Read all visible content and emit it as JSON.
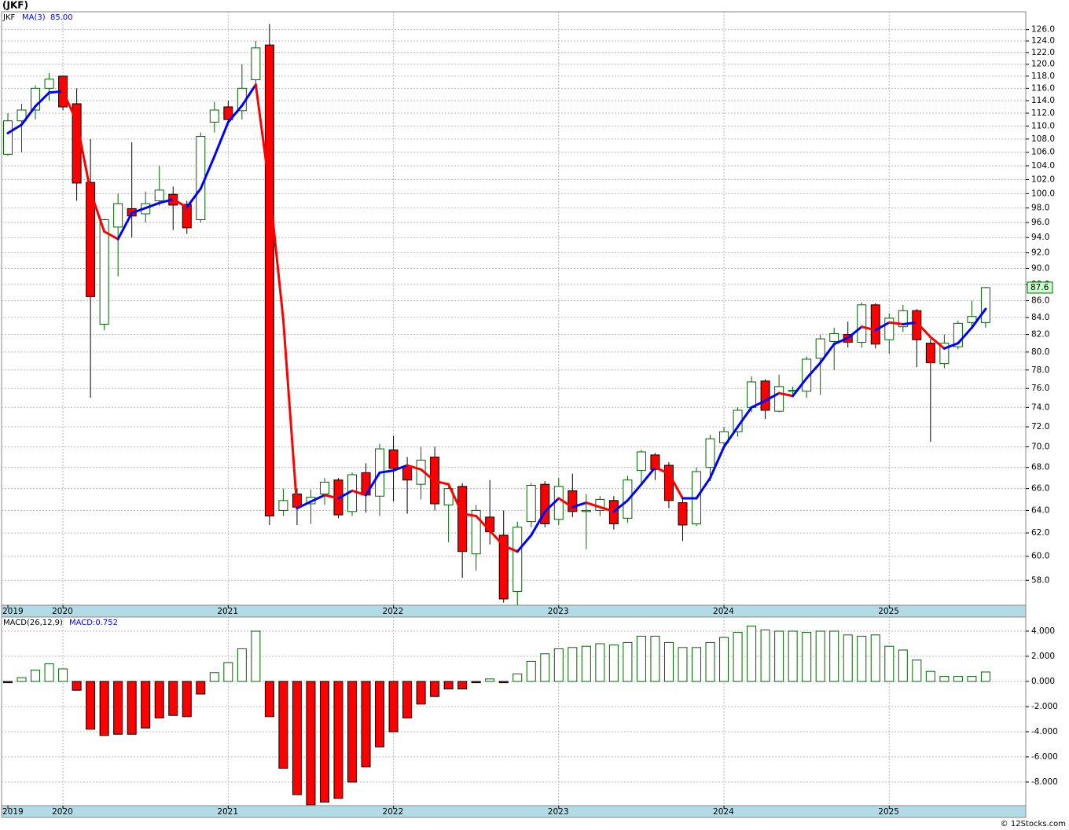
{
  "chart_data": [
    {
      "type": "candlestick",
      "title": "(JKF)",
      "symbol": "JKF",
      "categories": [
        "2019",
        null,
        null,
        null,
        "2020",
        null,
        null,
        null,
        null,
        null,
        null,
        null,
        null,
        null,
        null,
        null,
        "2021",
        null,
        null,
        null,
        null,
        null,
        null,
        null,
        null,
        null,
        null,
        null,
        "2022",
        null,
        null,
        null,
        null,
        null,
        null,
        null,
        null,
        null,
        null,
        null,
        "2023",
        null,
        null,
        null,
        null,
        null,
        null,
        null,
        null,
        null,
        null,
        null,
        "2024",
        null,
        null,
        null,
        null,
        null,
        null,
        null,
        null,
        null,
        null,
        null,
        "2025",
        null,
        null,
        null,
        null,
        null,
        null,
        null
      ],
      "open": [
        105.7,
        110.8,
        112.5,
        116,
        118,
        113.5,
        101.6,
        83.2,
        95.4,
        97.9,
        97.2,
        99,
        99.9,
        98.5,
        96.4,
        110.6,
        113,
        112.4,
        117.4,
        123.3,
        64,
        65.5,
        64.6,
        65.5,
        66.8,
        63.9,
        67.5,
        65.3,
        69.7,
        68.1,
        66.4,
        69,
        64.5,
        66.2,
        60.2,
        63.4,
        61.8,
        57.1,
        63,
        66.4,
        63.2,
        65.8,
        63.9,
        64,
        64.9,
        63.3,
        67.7,
        69.2,
        68.2,
        64.7,
        62.8,
        68,
        70.4,
        71.5,
        74,
        76.8,
        73.6,
        75.7,
        75.7,
        79.3,
        81.2,
        82,
        81.1,
        85.5,
        81.4,
        82.9,
        84.8,
        81,
        78.7,
        80.6,
        83.4,
        83.4
      ],
      "high": [
        112,
        113.5,
        116.5,
        118.5,
        118,
        116,
        108,
        96.5,
        100,
        107.5,
        100.3,
        104,
        101,
        99,
        109,
        113.8,
        114,
        120,
        124,
        127,
        66,
        66,
        65.9,
        67,
        67,
        67.5,
        68.4,
        70.3,
        71.1,
        69,
        70,
        70,
        66.5,
        66.5,
        64.5,
        66.8,
        64,
        63,
        66.5,
        66.7,
        67,
        67.4,
        65.5,
        65.3,
        65.3,
        67.2,
        69.7,
        69.4,
        68.5,
        65,
        68,
        71.2,
        72,
        74,
        77.3,
        77,
        77.5,
        76.2,
        79.5,
        82,
        82.8,
        83.5,
        85.8,
        85.7,
        84.5,
        85.5,
        85,
        81.5,
        82,
        83.6,
        86,
        87.7
      ],
      "low": [
        105.5,
        106,
        111,
        114,
        112.5,
        99,
        75,
        82.5,
        89,
        94,
        96,
        98.3,
        95,
        94.5,
        96,
        109,
        110.6,
        111,
        116,
        62.7,
        63.5,
        62.7,
        62.8,
        64.5,
        63.3,
        63.5,
        63.8,
        63.5,
        64.8,
        63.7,
        65,
        64,
        61.2,
        58.2,
        58.8,
        61,
        56.2,
        56,
        62.5,
        62.5,
        62.7,
        63.4,
        60.6,
        63.5,
        62.3,
        62.9,
        66.5,
        66.8,
        64.2,
        61.3,
        62.6,
        66.7,
        69.9,
        71,
        73.5,
        72.8,
        73.5,
        75.3,
        75,
        75.3,
        78,
        80.5,
        80.5,
        80.4,
        79.8,
        82.3,
        78.3,
        70.5,
        78.2,
        80.3,
        82.7,
        82.8
      ],
      "close": [
        110.8,
        112.5,
        116,
        117.5,
        113,
        101.5,
        86.5,
        96.4,
        98.6,
        96.9,
        98.6,
        100.5,
        98.4,
        95.3,
        108.4,
        112.5,
        111,
        116,
        122.8,
        63.5,
        64.9,
        64.3,
        65.2,
        66.6,
        63.6,
        67.3,
        65.4,
        69.8,
        67.9,
        66.8,
        68.7,
        64.6,
        66,
        60.4,
        64,
        62.1,
        56.5,
        62.5,
        66.3,
        62.8,
        66.2,
        63.9,
        64,
        65,
        62.8,
        66.8,
        69.5,
        67.8,
        64.9,
        62.7,
        67.6,
        70.8,
        71.5,
        73.7,
        76.7,
        73.7,
        76.2,
        75.8,
        79.2,
        81.5,
        82.1,
        81.1,
        85.5,
        80.9,
        83.9,
        84.8,
        81.4,
        78.8,
        81,
        83.3,
        84.1,
        87.6
      ],
      "close_label": "87.6",
      "up_color": "#006400",
      "down_color": "#ff0000",
      "series": [
        {
          "name": "MA(3)",
          "type": "line",
          "last_label": "85.00",
          "up_color": "#0000ff",
          "down_color": "#ff0000",
          "values": [
            108.9,
            110.2,
            113.1,
            115.3,
            115.5,
            110.7,
            100.3,
            94.8,
            93.8,
            97.3,
            98.0,
            98.7,
            99.2,
            98.1,
            100.7,
            105.4,
            110.6,
            113.2,
            116.6,
            100.8,
            83.7,
            64.2,
            64.8,
            65.4,
            65.1,
            65.8,
            65.4,
            67.5,
            67.7,
            68.2,
            67.8,
            66.7,
            66.4,
            63.7,
            63.5,
            62.2,
            60.9,
            60.4,
            61.8,
            63.9,
            65.1,
            64.3,
            64.7,
            64.3,
            63.9,
            64.9,
            66.4,
            68.0,
            67.4,
            65.1,
            65.1,
            67.0,
            70.0,
            72.0,
            74.0,
            74.7,
            75.5,
            75.2,
            77.1,
            78.8,
            80.9,
            81.6,
            82.9,
            82.5,
            83.4,
            83.2,
            83.4,
            81.7,
            80.4,
            81.0,
            82.8,
            85.0
          ]
        }
      ],
      "log_scale": true,
      "grid": true,
      "ylim": [
        56,
        129.2
      ],
      "yticks": [
        {
          "value": 58,
          "label": "58.0"
        },
        {
          "value": 60,
          "label": "60.0"
        },
        {
          "value": 62,
          "label": "62.0"
        },
        {
          "value": 64,
          "label": "64.0"
        },
        {
          "value": 66,
          "label": "66.0"
        },
        {
          "value": 68,
          "label": "68.0"
        },
        {
          "value": 70,
          "label": "70.0"
        },
        {
          "value": 72,
          "label": "72.0"
        },
        {
          "value": 74,
          "label": "74.0"
        },
        {
          "value": 76,
          "label": "76.0"
        },
        {
          "value": 78,
          "label": "78.0"
        },
        {
          "value": 80,
          "label": "80.0"
        },
        {
          "value": 82,
          "label": "82.0"
        },
        {
          "value": 84,
          "label": "84.0"
        },
        {
          "value": 86,
          "label": "86.0"
        },
        {
          "value": 88,
          "label": "88.0"
        },
        {
          "value": 90,
          "label": "90.0"
        },
        {
          "value": 92,
          "label": "92.0"
        },
        {
          "value": 94,
          "label": "94.0"
        },
        {
          "value": 96,
          "label": "96.0"
        },
        {
          "value": 98,
          "label": "98.0"
        },
        {
          "value": 100,
          "label": "100.0"
        },
        {
          "value": 102,
          "label": "102.0"
        },
        {
          "value": 104,
          "label": "104.0"
        },
        {
          "value": 106,
          "label": "106.0"
        },
        {
          "value": 108,
          "label": "108.0"
        },
        {
          "value": 110,
          "label": "110.0"
        },
        {
          "value": 112,
          "label": "112.0"
        },
        {
          "value": 114,
          "label": "114.0"
        },
        {
          "value": 116,
          "label": "116.0"
        },
        {
          "value": 118,
          "label": "118.0"
        },
        {
          "value": 120,
          "label": "120.0"
        },
        {
          "value": 122,
          "label": "122.0"
        },
        {
          "value": 124,
          "label": "124.0"
        },
        {
          "value": 126,
          "label": "126.0"
        }
      ]
    },
    {
      "type": "bar",
      "title": "MACD(26,12,9)",
      "categories": [
        "2019",
        null,
        null,
        null,
        "2020",
        null,
        null,
        null,
        null,
        null,
        null,
        null,
        null,
        null,
        null,
        null,
        "2021",
        null,
        null,
        null,
        null,
        null,
        null,
        null,
        null,
        null,
        null,
        null,
        "2022",
        null,
        null,
        null,
        null,
        null,
        null,
        null,
        null,
        null,
        null,
        null,
        "2023",
        null,
        null,
        null,
        null,
        null,
        null,
        null,
        null,
        null,
        null,
        null,
        "2024",
        null,
        null,
        null,
        null,
        null,
        null,
        null,
        null,
        null,
        null,
        null,
        "2025",
        null,
        null,
        null,
        null,
        null,
        null,
        null
      ],
      "series": [
        {
          "name": "MACD",
          "last_label": "MACD:0.752",
          "values": [
            -0.1,
            0.3,
            0.9,
            1.4,
            1.0,
            -0.7,
            -3.8,
            -4.3,
            -4.2,
            -4.2,
            -3.7,
            -2.9,
            -2.7,
            -2.8,
            -1.0,
            0.7,
            1.5,
            2.6,
            4.0,
            -2.8,
            -6.9,
            -9.0,
            -9.8,
            -9.6,
            -9.3,
            -8.0,
            -6.8,
            -5.2,
            -4.0,
            -2.9,
            -1.8,
            -1.2,
            -0.6,
            -0.6,
            -0.1,
            0.2,
            -0.1,
            0.6,
            1.6,
            2.2,
            2.6,
            2.7,
            2.8,
            3.0,
            2.9,
            3.1,
            3.6,
            3.6,
            3.1,
            2.7,
            2.7,
            3.1,
            3.5,
            3.9,
            4.4,
            4.1,
            4.0,
            4.0,
            3.9,
            4.0,
            4.0,
            3.7,
            3.6,
            3.7,
            2.8,
            2.5,
            1.7,
            0.8,
            0.4,
            0.4,
            0.4,
            0.752
          ]
        }
      ],
      "positive_color": "#006400",
      "negative_color": "#ff0000",
      "grid": true,
      "ylim": [
        -9.875,
        5.125
      ],
      "yticks": [
        {
          "value": -8,
          "label": "-8.000"
        },
        {
          "value": -6,
          "label": "-6.000"
        },
        {
          "value": -4,
          "label": "-4.000"
        },
        {
          "value": -2,
          "label": "-2.000"
        },
        {
          "value": 0,
          "label": "0.000"
        },
        {
          "value": 2,
          "label": "2.000"
        },
        {
          "value": 4,
          "label": "4.000"
        }
      ]
    }
  ],
  "credit": "© 12Stocks.com"
}
